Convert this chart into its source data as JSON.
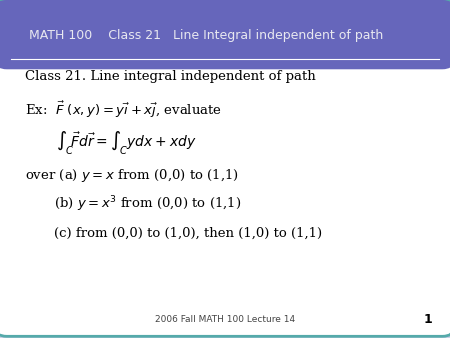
{
  "title": "MATH 100    Class 21   Line Integral independent of path",
  "title_color": "#e8e8f0",
  "title_bg_color": "#6666bb",
  "outer_bg_color": "#d0d0e8",
  "slide_bg_color": "#ffffff",
  "border_color": "#55aaaa",
  "footer_text": "2006 Fall MATH 100 Lecture 14",
  "footer_page": "1",
  "title_fontsize": 9.0,
  "content_fontsize": 9.5
}
